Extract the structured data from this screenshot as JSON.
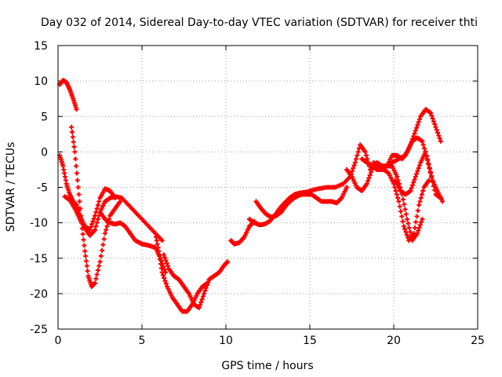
{
  "chart_data": {
    "type": "scatter",
    "title": "Day 032 of 2014, Sidereal Day-to-day VTEC variation (SDTVAR) for receiver thti",
    "xlabel": "GPS time / hours",
    "ylabel": "SDTVAR / TECUs",
    "xlim": [
      0,
      25
    ],
    "ylim": [
      -25,
      15
    ],
    "xticks": [
      0,
      5,
      10,
      15,
      20,
      25
    ],
    "yticks": [
      -25,
      -20,
      -15,
      -10,
      -5,
      0,
      5,
      10,
      15
    ],
    "grid": true,
    "marker": "plus",
    "color": "#ff0000",
    "series": [
      {
        "x": [
          0.1,
          0.3,
          0.5,
          0.7,
          0.9,
          1.1
        ],
        "y": [
          9.5,
          10.1,
          9.8,
          8.8,
          7.5,
          6.0
        ]
      },
      {
        "x": [
          0.8,
          1.0,
          1.2,
          1.4,
          1.6,
          1.8,
          2.0,
          2.2,
          2.5,
          2.8,
          3.1,
          3.4,
          3.7
        ],
        "y": [
          3.5,
          0.0,
          -5.0,
          -10.0,
          -14.0,
          -17.5,
          -19.0,
          -18.5,
          -15.5,
          -11.5,
          -9.0,
          -8.0,
          -7.0
        ]
      },
      {
        "x": [
          0.1,
          0.3,
          0.5,
          0.7,
          0.9,
          1.1,
          1.3,
          1.6,
          1.9,
          2.2,
          2.5,
          2.8,
          3.1,
          3.4
        ],
        "y": [
          -0.5,
          -2.0,
          -4.5,
          -6.0,
          -7.0,
          -7.5,
          -9.0,
          -10.5,
          -11.0,
          -9.0,
          -6.5,
          -5.2,
          -5.5,
          -6.5
        ]
      },
      {
        "x": [
          0.4,
          0.7,
          1.0,
          1.3,
          1.6,
          1.9,
          2.2,
          2.5,
          2.8,
          3.1,
          3.4,
          3.8,
          4.2,
          4.6,
          5.0,
          5.4,
          5.8,
          6.2
        ],
        "y": [
          -6.3,
          -6.8,
          -8.0,
          -9.5,
          -10.8,
          -11.8,
          -11.0,
          -8.5,
          -7.0,
          -6.5,
          -6.3,
          -6.5,
          -7.5,
          -8.5,
          -9.5,
          -10.5,
          -11.5,
          -12.5
        ]
      },
      {
        "x": [
          2.5,
          2.8,
          3.1,
          3.4,
          3.7,
          4.0,
          4.3,
          4.6,
          5.0,
          5.4,
          5.8,
          6.1,
          6.4
        ],
        "y": [
          -8.5,
          -9.5,
          -10.0,
          -10.2,
          -10.0,
          -10.5,
          -11.5,
          -12.5,
          -13.0,
          -13.2,
          -13.5,
          -15.0,
          -17.0
        ]
      },
      {
        "x": [
          5.8,
          6.0,
          6.2,
          6.5,
          6.8,
          7.1,
          7.4,
          7.7,
          8.0,
          8.3,
          8.6,
          8.9
        ],
        "y": [
          -11.5,
          -14.0,
          -17.0,
          -19.0,
          -20.5,
          -21.5,
          -22.5,
          -22.5,
          -21.5,
          -20.0,
          -19.0,
          -18.5
        ]
      },
      {
        "x": [
          6.3,
          6.6,
          6.9,
          7.2,
          7.5,
          7.8,
          8.1,
          8.4,
          8.7,
          9.0,
          9.3,
          9.6,
          9.9,
          10.1
        ],
        "y": [
          -14.5,
          -16.5,
          -17.5,
          -18.0,
          -19.0,
          -20.0,
          -21.5,
          -22.0,
          -20.0,
          -18.0,
          -17.5,
          -17.0,
          -16.0,
          -15.5
        ]
      },
      {
        "x": [
          10.3,
          10.5,
          10.8,
          11.1,
          11.4,
          11.7
        ],
        "y": [
          -12.5,
          -13.0,
          -12.8,
          -12.0,
          -10.5,
          -9.8
        ]
      },
      {
        "x": [
          11.4,
          11.7,
          12.0,
          12.3,
          12.6,
          12.9,
          13.2,
          13.5,
          13.8,
          14.1,
          14.4,
          14.7,
          15.0
        ],
        "y": [
          -9.5,
          -10.0,
          -10.3,
          -10.2,
          -9.8,
          -9.0,
          -8.0,
          -7.2,
          -6.5,
          -6.0,
          -5.8,
          -5.7,
          -5.6
        ]
      },
      {
        "x": [
          11.8,
          12.1,
          12.4,
          12.7,
          13.0,
          13.3,
          13.6,
          13.9,
          14.2,
          14.5,
          14.8,
          15.1,
          15.4,
          15.7,
          16.0,
          16.3,
          16.6,
          16.9,
          17.2
        ],
        "y": [
          -7.0,
          -8.0,
          -8.8,
          -9.2,
          -9.0,
          -8.5,
          -7.5,
          -6.8,
          -6.3,
          -6.0,
          -6.0,
          -6.0,
          -6.5,
          -7.0,
          -7.0,
          -7.0,
          -7.2,
          -6.5,
          -5.0
        ]
      },
      {
        "x": [
          15.0,
          15.5,
          16.0,
          16.5,
          17.0,
          17.4,
          17.7,
          18.0,
          18.3,
          18.6
        ],
        "y": [
          -5.5,
          -5.2,
          -5.0,
          -5.0,
          -4.5,
          -3.5,
          -1.5,
          1.0,
          0.0,
          -2.5
        ]
      },
      {
        "x": [
          17.2,
          17.5,
          17.8,
          18.1,
          18.4,
          18.7,
          19.0,
          19.3,
          19.6,
          19.9,
          20.2,
          20.5,
          20.8,
          21.1,
          21.4,
          21.7,
          22.0,
          22.3,
          22.6,
          22.9
        ],
        "y": [
          -2.5,
          -3.5,
          -5.0,
          -5.5,
          -4.5,
          -2.5,
          -1.5,
          -2.0,
          -2.0,
          -0.5,
          -0.5,
          -1.0,
          0.0,
          1.5,
          2.0,
          1.5,
          -1.0,
          -4.0,
          -5.5,
          -7.0
        ]
      },
      {
        "x": [
          18.1,
          18.4,
          18.7,
          19.0,
          19.3,
          19.6,
          19.9,
          20.2,
          20.5,
          20.8,
          21.1,
          21.4,
          21.7
        ],
        "y": [
          -1.0,
          -1.5,
          -2.0,
          -2.5,
          -2.5,
          -2.0,
          -2.0,
          -3.5,
          -6.0,
          -9.5,
          -12.5,
          -11.5,
          -9.5
        ]
      },
      {
        "x": [
          18.8,
          19.1,
          19.4,
          19.7,
          20.0,
          20.3,
          20.6,
          20.9,
          21.2,
          21.5,
          21.8,
          22.1
        ],
        "y": [
          -1.5,
          -2.0,
          -2.5,
          -3.0,
          -4.5,
          -7.0,
          -10.5,
          -12.5,
          -11.5,
          -7.5,
          -5.0,
          -4.0
        ]
      },
      {
        "x": [
          19.5,
          19.9,
          20.3,
          20.7,
          21.0,
          21.3,
          21.6,
          21.9,
          22.2,
          22.5,
          22.8
        ],
        "y": [
          -2.0,
          -1.5,
          -1.0,
          -0.5,
          1.0,
          3.0,
          5.0,
          6.0,
          5.5,
          3.5,
          1.5
        ]
      },
      {
        "x": [
          20.1,
          20.4,
          20.7,
          21.0,
          21.3,
          21.6,
          21.9,
          22.2,
          22.5,
          22.8
        ],
        "y": [
          -4.0,
          -5.5,
          -6.0,
          -5.5,
          -3.5,
          -1.5,
          0.0,
          -3.0,
          -6.0,
          -6.5
        ]
      }
    ]
  }
}
